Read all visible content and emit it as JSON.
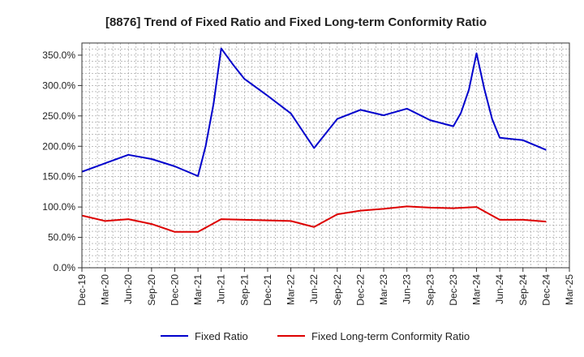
{
  "chart_data": {
    "type": "line",
    "title": "[8876]  Trend of Fixed Ratio and Fixed Long-term Conformity Ratio",
    "xlabel": "",
    "ylabel": "",
    "x_tick_labels": [
      "Dec-19",
      "Mar-20",
      "Jun-20",
      "Sep-20",
      "Dec-20",
      "Mar-21",
      "Jun-21",
      "Sep-21",
      "Dec-21",
      "Mar-22",
      "Jun-22",
      "Sep-22",
      "Dec-22",
      "Mar-23",
      "Jun-23",
      "Sep-23",
      "Dec-23",
      "Mar-24",
      "Jun-24",
      "Sep-24",
      "Dec-24",
      "Mar-25"
    ],
    "y_tick_labels": [
      "0.0%",
      "50.0%",
      "100.0%",
      "150.0%",
      "200.0%",
      "250.0%",
      "300.0%",
      "350.0%"
    ],
    "y_ticks": [
      0,
      50,
      100,
      150,
      200,
      250,
      300,
      350
    ],
    "ylim": [
      0,
      370
    ],
    "grid": true,
    "legend_position": "bottom-center",
    "series": [
      {
        "name": "Fixed Ratio",
        "color": "#0000cc",
        "points": [
          [
            0,
            158
          ],
          [
            1,
            172
          ],
          [
            2,
            186
          ],
          [
            3,
            179
          ],
          [
            4,
            167
          ],
          [
            5,
            151
          ],
          [
            5.33,
            200
          ],
          [
            5.67,
            270
          ],
          [
            6,
            361
          ],
          [
            6.5,
            335
          ],
          [
            7,
            311
          ],
          [
            8,
            283
          ],
          [
            9,
            254
          ],
          [
            10,
            197
          ],
          [
            11,
            245
          ],
          [
            12,
            260
          ],
          [
            13,
            251
          ],
          [
            14,
            262
          ],
          [
            15,
            243
          ],
          [
            16,
            233
          ],
          [
            16.33,
            255
          ],
          [
            16.67,
            293
          ],
          [
            17,
            353
          ],
          [
            17.33,
            295
          ],
          [
            17.67,
            245
          ],
          [
            18,
            214
          ],
          [
            19,
            210
          ],
          [
            20,
            194
          ]
        ]
      },
      {
        "name": "Fixed Long-term Conformity Ratio",
        "color": "#dd0000",
        "points": [
          [
            0,
            86
          ],
          [
            1,
            77
          ],
          [
            2,
            80
          ],
          [
            3,
            72
          ],
          [
            4,
            59
          ],
          [
            5,
            59
          ],
          [
            6,
            80
          ],
          [
            7,
            79
          ],
          [
            8,
            78
          ],
          [
            9,
            77
          ],
          [
            10,
            67
          ],
          [
            11,
            88
          ],
          [
            12,
            94
          ],
          [
            13,
            97
          ],
          [
            14,
            101
          ],
          [
            15,
            99
          ],
          [
            16,
            98
          ],
          [
            17,
            100
          ],
          [
            18,
            79
          ],
          [
            19,
            79
          ],
          [
            20,
            76
          ]
        ]
      }
    ]
  }
}
